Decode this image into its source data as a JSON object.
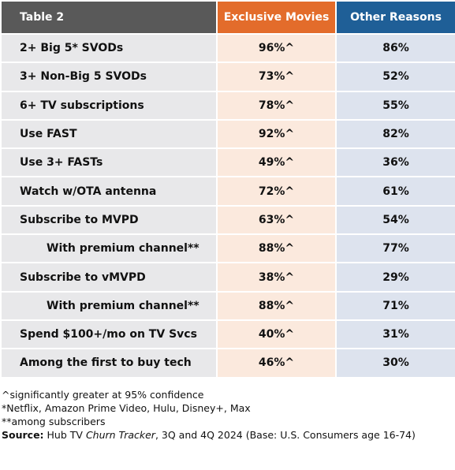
{
  "table": {
    "header": [
      "Table 2",
      "Exclusive Movies",
      "Other Reasons"
    ],
    "rows": [
      {
        "label": "2+ Big 5* SVODs",
        "exclusive": "96%^",
        "other": "86%"
      },
      {
        "label": "3+ Non-Big 5 SVODs",
        "exclusive": "73%^",
        "other": "52%"
      },
      {
        "label": "6+ TV subscriptions",
        "exclusive": "78%^",
        "other": "55%"
      },
      {
        "label": "Use FAST",
        "exclusive": "92%^",
        "other": "82%"
      },
      {
        "label": "Use 3+ FASTs",
        "exclusive": "49%^",
        "other": "36%"
      },
      {
        "label": "Watch w/OTA antenna",
        "exclusive": "72%^",
        "other": "61%"
      },
      {
        "label": "Subscribe to MVPD",
        "exclusive": "63%^",
        "other": "54%"
      },
      {
        "label": "With premium channel**",
        "exclusive": "88%^",
        "other": "77%",
        "indent": true
      },
      {
        "label": "Subscribe to vMVPD",
        "exclusive": "38%^",
        "other": "29%"
      },
      {
        "label": "With premium channel**",
        "exclusive": "88%^",
        "other": "71%",
        "indent": true
      },
      {
        "label": "Spend $100+/mo on TV Svcs",
        "exclusive": "40%^",
        "other": "31%"
      },
      {
        "label": "Among the first to buy tech",
        "exclusive": "46%^",
        "other": "30%"
      }
    ]
  },
  "notes": [
    "^significantly greater at 95% confidence",
    "*Netflix, Amazon Prime Video, Hulu, Disney+, Max",
    "**among subscribers"
  ],
  "source": {
    "label": "Source:",
    "before": "Hub TV",
    "italic": "Churn Tracker",
    "after": ", 3Q and 4Q 2024 (Base: U.S. Consumers age 16-74)"
  }
}
